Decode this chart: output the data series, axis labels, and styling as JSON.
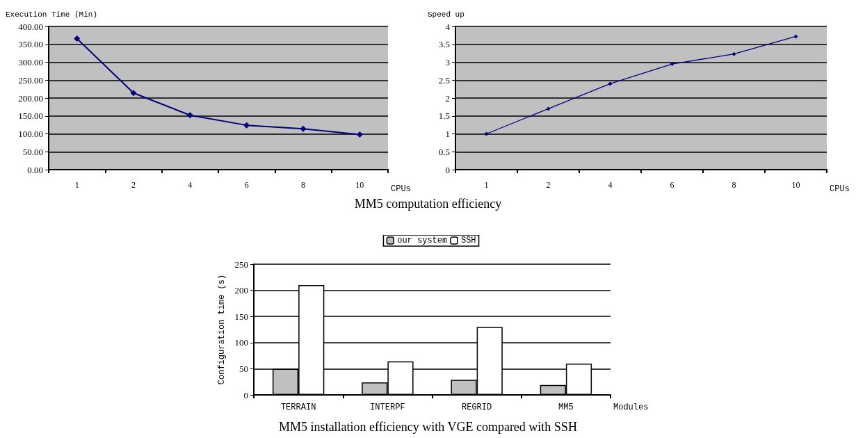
{
  "chart_data": [
    {
      "type": "line",
      "ylabel": "Execution Time (Min)",
      "xlabel": "CPUs",
      "categories": [
        "1",
        "2",
        "4",
        "6",
        "8",
        "10"
      ],
      "series": [
        {
          "color": "#000080",
          "values": [
            366,
            214,
            152,
            124,
            114,
            98
          ]
        }
      ],
      "ylim": [
        0,
        400
      ],
      "yticks": [
        {
          "value": 0,
          "label": "0.00"
        },
        {
          "value": 50,
          "label": "50.00"
        },
        {
          "value": 100,
          "label": "100.00"
        },
        {
          "value": 150,
          "label": "150.00"
        },
        {
          "value": 200,
          "label": "200.00"
        },
        {
          "value": 250,
          "label": "250.00"
        },
        {
          "value": 300,
          "label": "300.00"
        },
        {
          "value": 350,
          "label": "350.00"
        },
        {
          "value": 400,
          "label": "400.00"
        }
      ],
      "grid": "y",
      "marker": "diamond",
      "annotations": [
        "MM5 computation efficiency"
      ]
    },
    {
      "type": "line",
      "ylabel": "Speed up",
      "xlabel": "CPUs",
      "categories": [
        "1",
        "2",
        "4",
        "6",
        "8",
        "10"
      ],
      "series": [
        {
          "color": "#000080",
          "values": [
            1,
            1.7,
            2.4,
            2.95,
            3.23,
            3.72
          ]
        }
      ],
      "ylim": [
        0,
        4
      ],
      "yticks": [
        0,
        0.5,
        1,
        1.5,
        2,
        2.5,
        3,
        3.5,
        4
      ],
      "grid": "y",
      "marker": "diamond"
    },
    {
      "type": "bar",
      "ylabel": "Configuration time (s)",
      "xlabel": "Modules",
      "categories": [
        "TERRAIN",
        "INTERPF",
        "REGRID",
        "MM5"
      ],
      "series": [
        {
          "name": "our system",
          "color": "#c0c0c0",
          "values": [
            50,
            24,
            29,
            19
          ]
        },
        {
          "name": "SSH",
          "color": "#ffffff",
          "values": [
            210,
            64,
            130,
            60
          ]
        }
      ],
      "ylim": [
        0,
        250
      ],
      "yticks": [
        0,
        50,
        100,
        150,
        200,
        250
      ],
      "grid": "y",
      "legend": "top",
      "annotations": [
        "MM5 installation efficiency with VGE compared with SSH"
      ]
    }
  ]
}
